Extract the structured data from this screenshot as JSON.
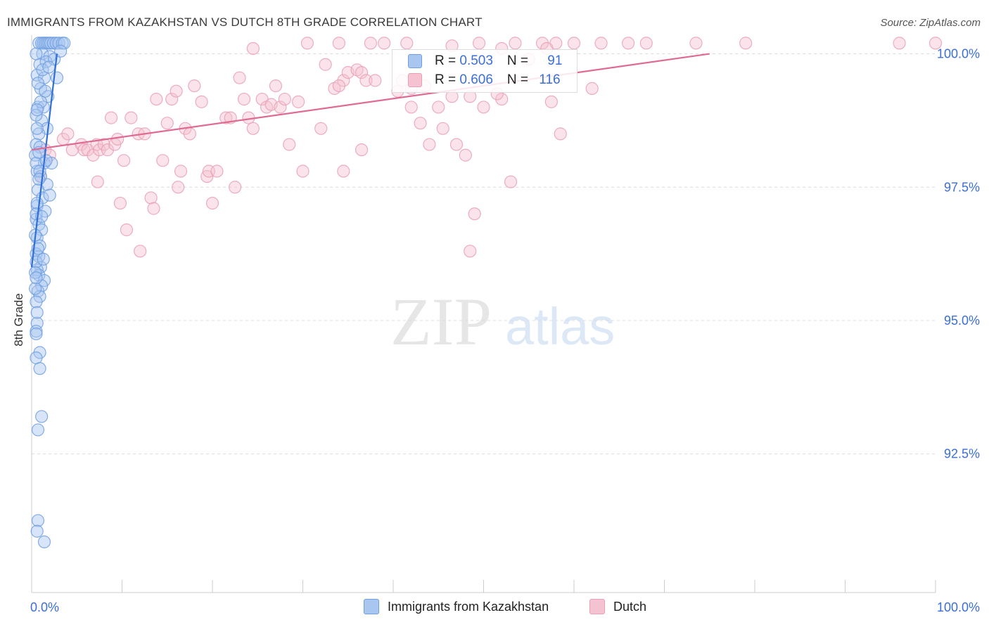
{
  "header": {
    "title": "IMMIGRANTS FROM KAZAKHSTAN VS DUTCH 8TH GRADE CORRELATION CHART",
    "source": "Source: ZipAtlas.com"
  },
  "watermark": {
    "zip": "ZIP",
    "atlas": "atlas"
  },
  "legend": {
    "rows": [
      {
        "r_label": "R = ",
        "r_value": "0.503",
        "n_label": "N = ",
        "n_value": "91"
      },
      {
        "r_label": "R = ",
        "r_value": "0.606",
        "n_label": "N = ",
        "n_value": "116"
      }
    ]
  },
  "chart_data": {
    "type": "scatter",
    "title": "IMMIGRANTS FROM KAZAKHSTAN VS DUTCH 8TH GRADE CORRELATION CHART",
    "xlabel": "",
    "ylabel": "8th Grade",
    "xlim": [
      0,
      100
    ],
    "ylim": [
      89.9,
      100.35
    ],
    "x_tick_labels": [
      {
        "value": 0,
        "label": "0.0%"
      },
      {
        "value": 100,
        "label": "100.0%"
      }
    ],
    "y_tick_labels": [
      {
        "value": 100.0,
        "label": "100.0%"
      },
      {
        "value": 97.5,
        "label": "97.5%"
      },
      {
        "value": 95.0,
        "label": "95.0%"
      },
      {
        "value": 92.5,
        "label": "92.5%"
      }
    ],
    "grid": true,
    "legend_position": "bottom-center",
    "series": [
      {
        "name": "Immigrants from Kazakhstan",
        "color": "#6f9fe0",
        "fill": "#a9c6f0",
        "line_color": "#2f6fd6",
        "R": 0.503,
        "N": 91,
        "trend": {
          "x": [
            0.0,
            2.8
          ],
          "y": [
            96.0,
            100.0
          ]
        },
        "points": [
          [
            0.8,
            100.2
          ],
          [
            1.1,
            100.2
          ],
          [
            1.3,
            100.2
          ],
          [
            1.5,
            100.2
          ],
          [
            1.7,
            100.2
          ],
          [
            1.9,
            100.2
          ],
          [
            2.1,
            100.2
          ],
          [
            2.4,
            100.2
          ],
          [
            2.7,
            100.2
          ],
          [
            3.0,
            100.2
          ],
          [
            3.4,
            100.2
          ],
          [
            3.6,
            100.2
          ],
          [
            1.2,
            100.0
          ],
          [
            2.0,
            99.95
          ],
          [
            0.9,
            99.8
          ],
          [
            1.6,
            99.85
          ],
          [
            0.6,
            99.6
          ],
          [
            1.4,
            99.55
          ],
          [
            2.8,
            99.55
          ],
          [
            1.0,
            99.35
          ],
          [
            1.8,
            99.2
          ],
          [
            0.7,
            99.0
          ],
          [
            1.3,
            99.0
          ],
          [
            1.1,
            98.75
          ],
          [
            1.7,
            98.6
          ],
          [
            0.8,
            98.5
          ],
          [
            0.5,
            98.3
          ],
          [
            0.9,
            98.25
          ],
          [
            1.4,
            97.95
          ],
          [
            2.2,
            97.95
          ],
          [
            0.6,
            97.8
          ],
          [
            1.0,
            97.7
          ],
          [
            1.7,
            97.55
          ],
          [
            0.7,
            97.45
          ],
          [
            1.2,
            97.3
          ],
          [
            2.0,
            97.35
          ],
          [
            0.6,
            97.15
          ],
          [
            1.5,
            97.05
          ],
          [
            0.5,
            96.9
          ],
          [
            0.8,
            96.8
          ],
          [
            1.1,
            96.7
          ],
          [
            0.6,
            96.55
          ],
          [
            0.9,
            96.4
          ],
          [
            0.5,
            96.25
          ],
          [
            0.8,
            96.2
          ],
          [
            1.0,
            96.0
          ],
          [
            0.6,
            95.95
          ],
          [
            0.8,
            95.85
          ],
          [
            1.4,
            95.75
          ],
          [
            1.1,
            95.65
          ],
          [
            0.7,
            95.55
          ],
          [
            0.9,
            95.45
          ],
          [
            0.5,
            95.35
          ],
          [
            0.6,
            94.95
          ],
          [
            0.5,
            94.8
          ],
          [
            0.5,
            94.75
          ],
          [
            0.9,
            94.4
          ],
          [
            0.5,
            94.3
          ],
          [
            1.1,
            93.2
          ],
          [
            0.7,
            92.95
          ],
          [
            0.7,
            91.25
          ],
          [
            0.6,
            91.05
          ],
          [
            1.4,
            90.85
          ],
          [
            0.4,
            98.1
          ],
          [
            0.5,
            97.95
          ],
          [
            0.6,
            97.2
          ],
          [
            0.4,
            96.6
          ],
          [
            0.5,
            96.1
          ],
          [
            0.4,
            95.9
          ],
          [
            0.4,
            95.6
          ],
          [
            1.6,
            98.0
          ],
          [
            0.9,
            97.8
          ],
          [
            0.7,
            99.45
          ],
          [
            1.0,
            99.1
          ],
          [
            0.5,
            98.85
          ],
          [
            0.6,
            98.95
          ],
          [
            0.8,
            97.65
          ],
          [
            0.5,
            97.0
          ],
          [
            0.7,
            96.35
          ],
          [
            1.1,
            96.95
          ],
          [
            0.5,
            95.8
          ],
          [
            1.3,
            96.15
          ],
          [
            0.6,
            95.15
          ],
          [
            0.9,
            94.1
          ],
          [
            1.2,
            99.7
          ],
          [
            2.5,
            99.9
          ],
          [
            1.9,
            99.75
          ],
          [
            0.5,
            100.0
          ],
          [
            3.2,
            100.05
          ],
          [
            1.5,
            99.3
          ],
          [
            0.6,
            98.6
          ],
          [
            0.8,
            98.15
          ]
        ]
      },
      {
        "name": "Dutch",
        "color": "#e9a0b6",
        "fill": "#f4c2d1",
        "line_color": "#e06a92",
        "R": 0.606,
        "N": 116,
        "trend": {
          "x": [
            0.0,
            75.0
          ],
          "y": [
            98.2,
            100.0
          ]
        },
        "points": [
          [
            1.0,
            97.7
          ],
          [
            1.5,
            98.2
          ],
          [
            2.0,
            98.1
          ],
          [
            3.5,
            98.4
          ],
          [
            4.0,
            98.5
          ],
          [
            4.5,
            98.2
          ],
          [
            5.5,
            98.3
          ],
          [
            5.8,
            98.2
          ],
          [
            6.2,
            98.2
          ],
          [
            6.8,
            98.1
          ],
          [
            7.2,
            98.3
          ],
          [
            7.5,
            98.2
          ],
          [
            8.0,
            98.3
          ],
          [
            8.4,
            98.2
          ],
          [
            9.2,
            98.3
          ],
          [
            9.5,
            98.4
          ],
          [
            7.3,
            97.6
          ],
          [
            8.8,
            98.8
          ],
          [
            10.2,
            98.0
          ],
          [
            11.0,
            98.8
          ],
          [
            11.8,
            98.5
          ],
          [
            12.5,
            98.5
          ],
          [
            13.8,
            99.15
          ],
          [
            15.0,
            98.7
          ],
          [
            15.5,
            99.15
          ],
          [
            16.0,
            99.3
          ],
          [
            17.0,
            98.6
          ],
          [
            17.5,
            98.5
          ],
          [
            18.0,
            99.4
          ],
          [
            18.8,
            99.1
          ],
          [
            9.8,
            97.2
          ],
          [
            10.5,
            96.7
          ],
          [
            12.0,
            96.3
          ],
          [
            13.2,
            97.3
          ],
          [
            13.5,
            97.1
          ],
          [
            14.5,
            98.0
          ],
          [
            16.2,
            97.5
          ],
          [
            16.5,
            97.8
          ],
          [
            19.4,
            97.7
          ],
          [
            19.6,
            97.8
          ],
          [
            20.5,
            97.8
          ],
          [
            20.0,
            97.2
          ],
          [
            22.5,
            97.5
          ],
          [
            21.5,
            98.8
          ],
          [
            22.0,
            98.8
          ],
          [
            23.0,
            99.55
          ],
          [
            23.5,
            99.15
          ],
          [
            24.0,
            98.8
          ],
          [
            24.5,
            98.6
          ],
          [
            25.5,
            99.15
          ],
          [
            26.0,
            99.0
          ],
          [
            26.5,
            99.05
          ],
          [
            27.0,
            99.4
          ],
          [
            27.5,
            99.0
          ],
          [
            28.0,
            99.15
          ],
          [
            29.5,
            99.1
          ],
          [
            28.5,
            98.3
          ],
          [
            24.5,
            100.1
          ],
          [
            30.5,
            100.2
          ],
          [
            32.5,
            99.8
          ],
          [
            32.0,
            98.6
          ],
          [
            33.5,
            99.35
          ],
          [
            34.5,
            99.5
          ],
          [
            35.0,
            99.65
          ],
          [
            36.0,
            99.7
          ],
          [
            36.5,
            99.65
          ],
          [
            37.0,
            99.5
          ],
          [
            34.0,
            99.4
          ],
          [
            30.0,
            97.8
          ],
          [
            34.5,
            97.8
          ],
          [
            36.5,
            98.2
          ],
          [
            34.0,
            100.2
          ],
          [
            37.5,
            100.2
          ],
          [
            39.0,
            100.2
          ],
          [
            41.5,
            100.2
          ],
          [
            41.0,
            99.5
          ],
          [
            42.0,
            99.35
          ],
          [
            42.0,
            99.0
          ],
          [
            43.0,
            98.7
          ],
          [
            45.0,
            99.0
          ],
          [
            45.5,
            98.6
          ],
          [
            46.5,
            99.2
          ],
          [
            48.5,
            99.2
          ],
          [
            44.0,
            98.3
          ],
          [
            47.0,
            98.3
          ],
          [
            48.0,
            98.1
          ],
          [
            46.5,
            100.15
          ],
          [
            49.5,
            100.2
          ],
          [
            52.0,
            100.1
          ],
          [
            53.5,
            100.2
          ],
          [
            55.0,
            99.9
          ],
          [
            56.5,
            100.2
          ],
          [
            58.0,
            100.2
          ],
          [
            50.0,
            99.0
          ],
          [
            52.0,
            99.15
          ],
          [
            51.5,
            99.25
          ],
          [
            53.0,
            97.6
          ],
          [
            48.5,
            96.3
          ],
          [
            49.0,
            97.0
          ],
          [
            57.0,
            100.1
          ],
          [
            60.0,
            100.2
          ],
          [
            63.0,
            100.2
          ],
          [
            66.0,
            100.2
          ],
          [
            62.0,
            99.35
          ],
          [
            57.5,
            99.1
          ],
          [
            58.5,
            98.5
          ],
          [
            68.0,
            100.2
          ],
          [
            73.5,
            100.2
          ],
          [
            79.0,
            100.2
          ],
          [
            96.0,
            100.2
          ],
          [
            100.0,
            100.2
          ],
          [
            38.0,
            99.5
          ],
          [
            40.5,
            99.3
          ],
          [
            43.5,
            99.4
          ]
        ]
      }
    ]
  }
}
